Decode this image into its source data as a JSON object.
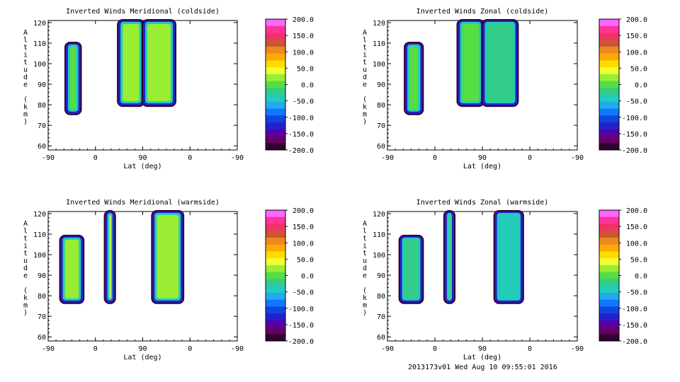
{
  "footer": "2013173v01 Wed Aug 10 09:55:01 2016",
  "colorbar": {
    "ticks": [
      "200.0",
      "150.0",
      "100.0",
      "50.0",
      "0.0",
      "-50.0",
      "-100.0",
      "-150.0",
      "-200.0"
    ],
    "colors": [
      "#ff66ff",
      "#ff3399",
      "#ee3366",
      "#cc5533",
      "#ee8822",
      "#ffaa00",
      "#ffdd00",
      "#eeff33",
      "#99ee33",
      "#55dd44",
      "#33cc88",
      "#22ccbb",
      "#22aaee",
      "#1177ff",
      "#1144dd",
      "#2222cc",
      "#5500aa",
      "#660066",
      "#330033"
    ]
  },
  "chart_data": [
    {
      "type": "heatmap",
      "title": "Inverted Winds Meridional (coldside)",
      "xlabel": "Lat (deg)",
      "ylabel": "Altitude (km)",
      "xticks": [
        "-90",
        "0",
        "90",
        "0",
        "-90"
      ],
      "yticks": [
        "60",
        "70",
        "80",
        "90",
        "100",
        "110",
        "120"
      ],
      "ylim": [
        58,
        121
      ],
      "clim": [
        -200,
        200
      ],
      "regions": [
        {
          "lat": [
            -55,
            -30
          ],
          "alt": [
            76,
            110
          ],
          "value": 10
        },
        {
          "lat": [
            45,
            90
          ],
          "alt": [
            80,
            121
          ],
          "value": 30
        },
        {
          "lat": [
            92,
            150
          ],
          "alt": [
            80,
            121
          ],
          "value": 30
        }
      ]
    },
    {
      "type": "heatmap",
      "title": "Inverted Winds Zonal (coldside)",
      "xlabel": "Lat (deg)",
      "ylabel": "Altitude (km)",
      "xticks": [
        "-90",
        "0",
        "90",
        "0",
        "-90"
      ],
      "yticks": [
        "60",
        "70",
        "80",
        "90",
        "100",
        "110",
        "120"
      ],
      "ylim": [
        58,
        121
      ],
      "clim": [
        -200,
        200
      ],
      "regions": [
        {
          "lat": [
            -55,
            -25
          ],
          "alt": [
            76,
            110
          ],
          "value": 10
        },
        {
          "lat": [
            45,
            90
          ],
          "alt": [
            80,
            121
          ],
          "value": 0
        },
        {
          "lat": [
            92,
            155
          ],
          "alt": [
            80,
            121
          ],
          "value": -20
        }
      ]
    },
    {
      "type": "heatmap",
      "title": "Inverted Winds Meridional (warmside)",
      "xlabel": "Lat (deg)",
      "ylabel": "Altitude (km)",
      "xticks": [
        "-90",
        "0",
        "90",
        "0",
        "-90"
      ],
      "yticks": [
        "60",
        "70",
        "80",
        "90",
        "100",
        "110",
        "120"
      ],
      "ylim": [
        58,
        121
      ],
      "clim": [
        -200,
        200
      ],
      "regions": [
        {
          "lat": [
            -65,
            -25
          ],
          "alt": [
            77,
            109
          ],
          "value": 30
        },
        {
          "lat": [
            20,
            35
          ],
          "alt": [
            77,
            121
          ],
          "value": 40
        },
        {
          "lat": [
            110,
            165
          ],
          "alt": [
            77,
            121
          ],
          "value": 15
        }
      ]
    },
    {
      "type": "heatmap",
      "title": "Inverted Winds Zonal (warmside)",
      "xlabel": "Lat (deg)",
      "ylabel": "Altitude (km)",
      "xticks": [
        "-90",
        "0",
        "90",
        "0",
        "-90"
      ],
      "yticks": [
        "60",
        "70",
        "80",
        "90",
        "100",
        "110",
        "120"
      ],
      "ylim": [
        58,
        121
      ],
      "clim": [
        -200,
        200
      ],
      "regions": [
        {
          "lat": [
            -65,
            -25
          ],
          "alt": [
            77,
            109
          ],
          "value": -20
        },
        {
          "lat": [
            20,
            35
          ],
          "alt": [
            77,
            121
          ],
          "value": 10
        },
        {
          "lat": [
            115,
            165
          ],
          "alt": [
            77,
            121
          ],
          "value": -40
        }
      ]
    }
  ]
}
